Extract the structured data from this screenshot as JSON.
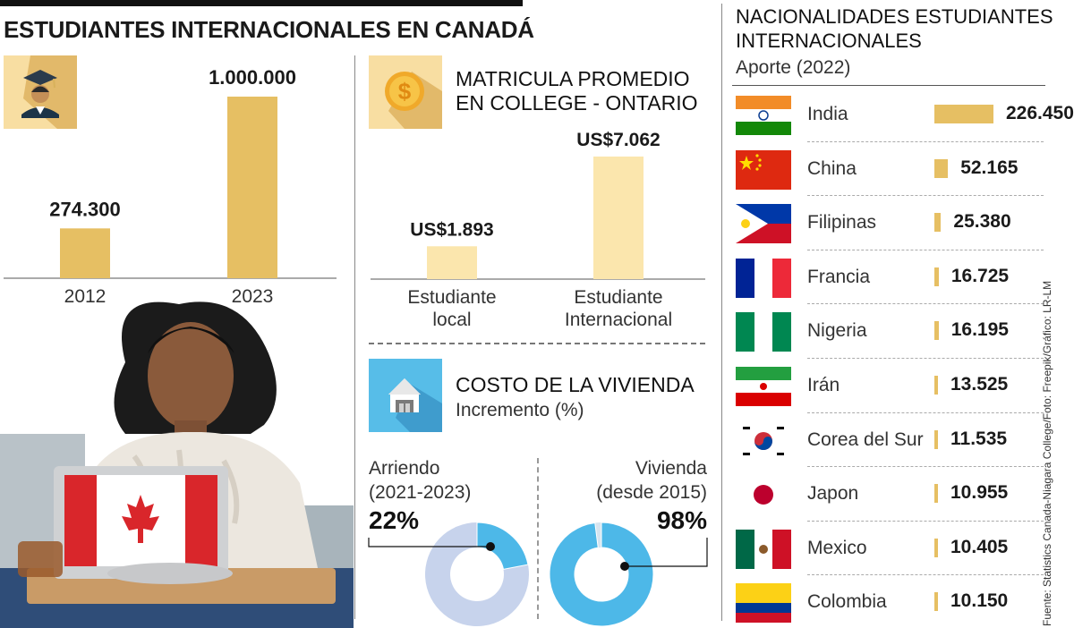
{
  "title": "ESTUDIANTES INTERNACIONALES EN CANADÁ",
  "colors": {
    "gold": "#e6bf63",
    "light_gold": "#fbe6ad",
    "pale_blue": "#c7d3ec",
    "blue": "#4db8e8"
  },
  "icons": [
    "graduate-icon",
    "dollar-coin-icon",
    "house-icon",
    "canada-flag-laptop-photo"
  ],
  "students": {
    "items": [
      {
        "year": "2012",
        "value_label": "274.300"
      },
      {
        "year": "2023",
        "value_label": "1.000.000"
      }
    ]
  },
  "tuition": {
    "title_line1": "MATRICULA PROMEDIO",
    "title_line2": "EN COLLEGE - ONTARIO",
    "items": [
      {
        "label_line1": "Estudiante",
        "label_line2": "local",
        "value_label": "US$1.893"
      },
      {
        "label_line1": "Estudiante",
        "label_line2": "Internacional",
        "value_label": "US$7.062"
      }
    ]
  },
  "housing": {
    "title": "COSTO DE LA VIVIENDA",
    "subtitle": "Incremento (%)",
    "donuts": [
      {
        "label_line1": "Arriendo",
        "label_line2": "(2021-2023)",
        "value_label": "22%"
      },
      {
        "label_line1": "Vivienda",
        "label_line2": "(desde 2015)",
        "value_label": "98%"
      }
    ]
  },
  "nationalities": {
    "title_line1": "NACIONALIDADES ESTUDIANTES",
    "title_line2": "INTERNACIONALES",
    "subtitle": "Aporte (2022)",
    "items": [
      {
        "country": "India",
        "value_label": "226.450"
      },
      {
        "country": "China",
        "value_label": "52.165"
      },
      {
        "country": "Filipinas",
        "value_label": "25.380"
      },
      {
        "country": "Francia",
        "value_label": "16.725"
      },
      {
        "country": "Nigeria",
        "value_label": "16.195"
      },
      {
        "country": "Irán",
        "value_label": "13.525"
      },
      {
        "country": "Corea del Sur",
        "value_label": "11.535"
      },
      {
        "country": "Japon",
        "value_label": "10.955"
      },
      {
        "country": "Mexico",
        "value_label": "10.405"
      },
      {
        "country": "Colombia",
        "value_label": "10.150"
      }
    ]
  },
  "source": "Fuente: Statistics Canada-Niagara College/Foto: Freepik/Gráfico: LR-LM",
  "chart_data": [
    {
      "type": "bar",
      "categories": [
        "2012",
        "2023"
      ],
      "values": [
        274300,
        1000000
      ]
    },
    {
      "type": "bar",
      "title": "MATRICULA PROMEDIO EN COLLEGE - ONTARIO",
      "categories": [
        "Estudiante local",
        "Estudiante Internacional"
      ],
      "values": [
        1893,
        7062
      ]
    },
    {
      "type": "pie",
      "title": "COSTO DE LA VIVIENDA",
      "subtitle": "Incremento (%)",
      "categories": [
        "Arriendo (2021-2023)",
        "Vivienda (desde 2015)"
      ],
      "values": [
        22,
        98
      ]
    },
    {
      "type": "bar",
      "title": "NACIONALIDADES ESTUDIANTES INTERNACIONALES",
      "subtitle": "Aporte (2022)",
      "categories": [
        "India",
        "China",
        "Filipinas",
        "Francia",
        "Nigeria",
        "Irán",
        "Corea del Sur",
        "Japon",
        "Mexico",
        "Colombia"
      ],
      "values": [
        226450,
        52165,
        25380,
        16725,
        16195,
        13525,
        11535,
        10955,
        10405,
        10150
      ]
    }
  ]
}
